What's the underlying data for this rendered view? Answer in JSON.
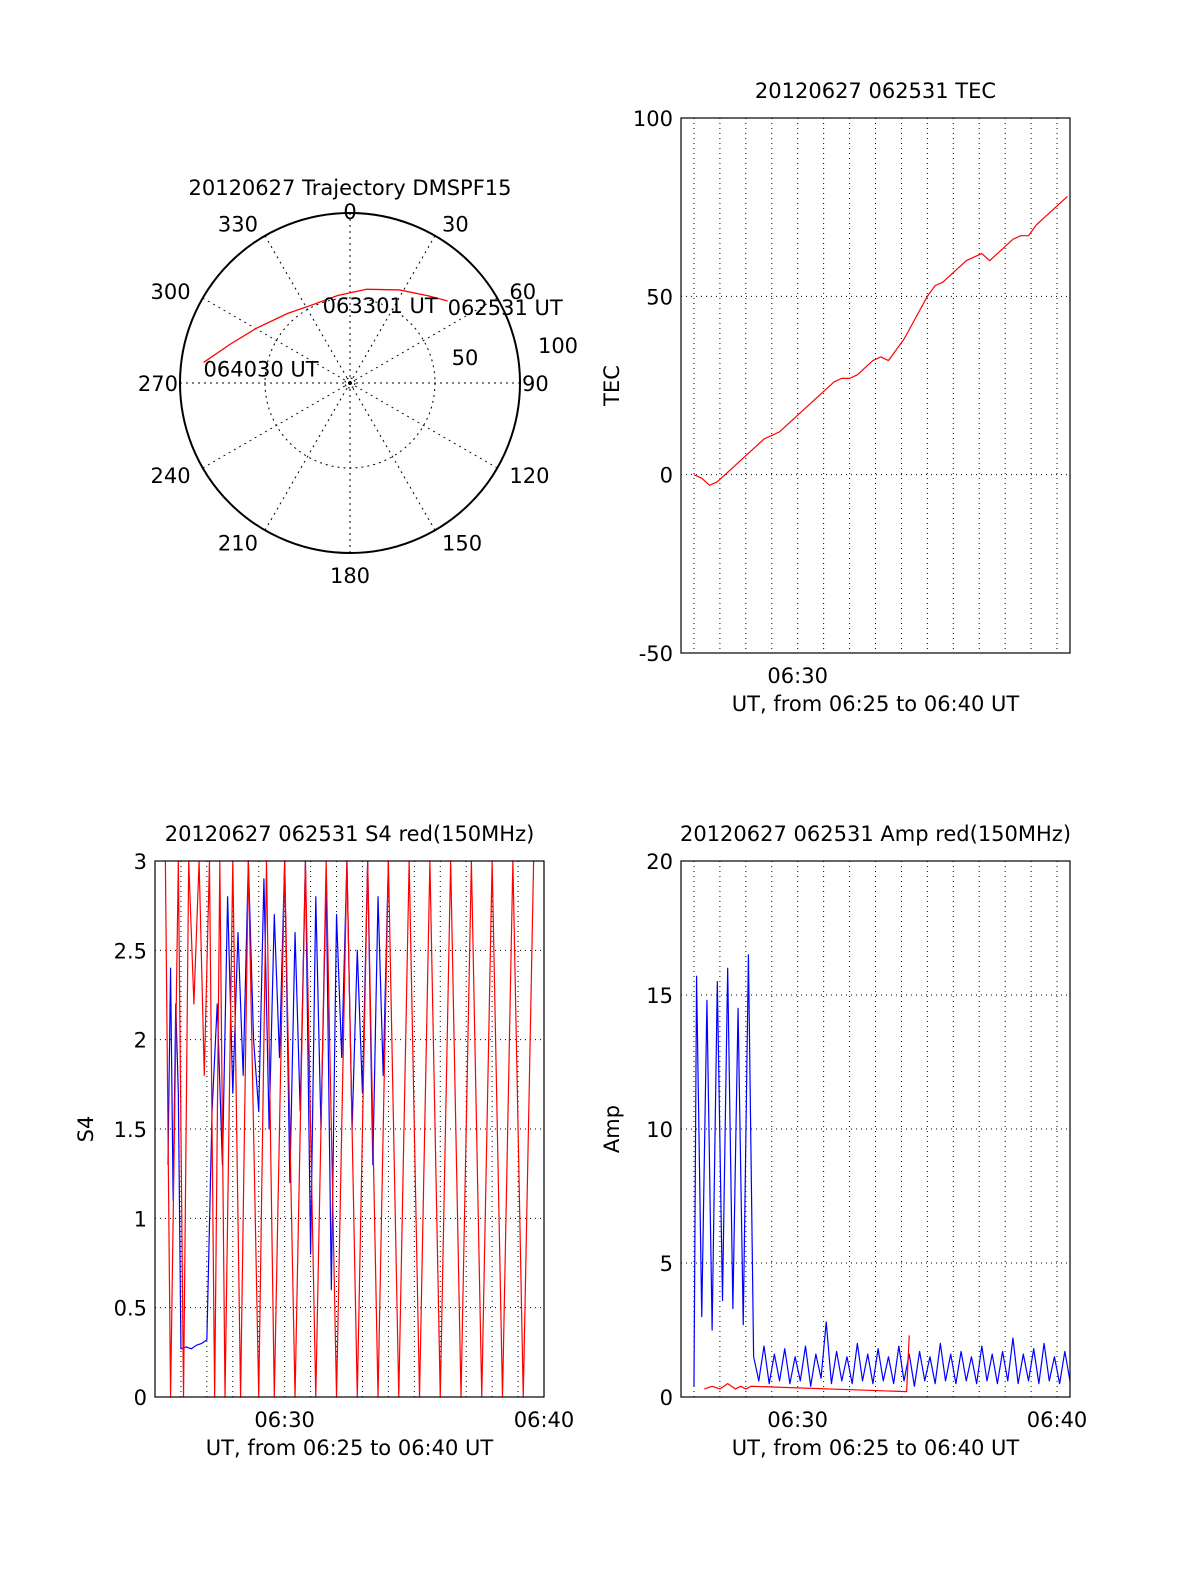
{
  "chart_data": [
    {
      "type": "polar",
      "title": "20120627 Trajectory DMSPF15",
      "angle_ticks": [
        "0",
        "30",
        "60",
        "90",
        "120",
        "150",
        "180",
        "210",
        "240",
        "270",
        "300",
        "330"
      ],
      "radius_range": [
        0,
        100
      ],
      "radius_ticks": [
        "50",
        "100"
      ],
      "grid": true,
      "trajectory": {
        "color": "#ff0000",
        "points": [
          {
            "az": 50,
            "dist": 75
          },
          {
            "az": 42,
            "dist": 69
          },
          {
            "az": 28,
            "dist": 62
          },
          {
            "az": 10,
            "dist": 56
          },
          {
            "az": -8,
            "dist": 52
          },
          {
            "az": -25,
            "dist": 51
          },
          {
            "az": -42,
            "dist": 55
          },
          {
            "az": -60,
            "dist": 64
          },
          {
            "az": -72,
            "dist": 74
          },
          {
            "az": -82,
            "dist": 87
          }
        ]
      },
      "annotations": [
        {
          "text": "062531 UT",
          "az": 50,
          "dist": 75
        },
        {
          "text": "063301 UT",
          "az": -18,
          "dist": 52
        },
        {
          "text": "064030 UT",
          "az": -82,
          "dist": 87
        }
      ]
    },
    {
      "type": "line",
      "title": "20120627 062531 TEC",
      "xlabel": "UT, from 06:25 to 06:40 UT",
      "ylabel": "TEC",
      "xlim": [
        25.5,
        40.5
      ],
      "ylim": [
        -50,
        100
      ],
      "yticks": [
        "-50",
        "0",
        "50",
        "100"
      ],
      "xticks": [
        {
          "x": 30,
          "label": "06:30"
        }
      ],
      "grid": true,
      "series": [
        {
          "color": "#ff0000",
          "x": [
            26.0,
            26.3,
            26.6,
            26.9,
            27.2,
            27.5,
            27.8,
            28.1,
            28.4,
            28.7,
            29.0,
            29.3,
            29.6,
            29.9,
            30.2,
            30.5,
            30.8,
            31.1,
            31.4,
            31.7,
            32.0,
            32.3,
            32.6,
            32.9,
            33.2,
            33.5,
            33.8,
            34.1,
            34.4,
            34.7,
            35.0,
            35.3,
            35.6,
            35.9,
            36.2,
            36.5,
            36.8,
            37.1,
            37.4,
            37.7,
            38.0,
            38.3,
            38.6,
            38.9,
            39.2,
            39.5,
            39.8,
            40.1,
            40.4
          ],
          "y": [
            0,
            -1,
            -3,
            -2,
            0,
            2,
            4,
            6,
            8,
            10,
            11,
            12,
            14,
            16,
            18,
            20,
            22,
            24,
            26,
            27,
            27,
            28,
            30,
            32,
            33,
            32,
            35,
            38,
            42,
            46,
            50,
            53,
            54,
            56,
            58,
            60,
            61,
            62,
            60,
            62,
            64,
            66,
            67,
            67,
            70,
            72,
            74,
            76,
            78
          ]
        }
      ]
    },
    {
      "type": "line",
      "title": "20120627 062531 S4 red(150MHz)",
      "xlabel": "UT, from 06:25 to 06:40 UT",
      "ylabel": "S4",
      "xlim": [
        25.0,
        40.0
      ],
      "ylim": [
        0,
        3
      ],
      "yticks": [
        "0",
        "0.5",
        "1",
        "1.5",
        "2",
        "2.5",
        "3"
      ],
      "xticks": [
        {
          "x": 30,
          "label": "06:30"
        },
        {
          "x": 40,
          "label": "06:40"
        }
      ],
      "grid": true,
      "series": [
        {
          "color": "#0000ff",
          "x": [
            25.5,
            25.6,
            25.7,
            25.8,
            25.9,
            26.0,
            26.2,
            26.4,
            26.6,
            26.8,
            27.0,
            27.2,
            27.4,
            27.6,
            27.8,
            28.0,
            28.2,
            28.4,
            28.6,
            28.8,
            29.0,
            29.2,
            29.4,
            29.6,
            29.8,
            30.0,
            30.2,
            30.4,
            30.6,
            30.8,
            31.0,
            31.2,
            31.4,
            31.6,
            31.8,
            32.0,
            32.2,
            32.4,
            32.6,
            32.8,
            33.0,
            33.2,
            33.4,
            33.6,
            33.8,
            34.0
          ],
          "y": [
            1.3,
            2.4,
            1.1,
            2.2,
            1.7,
            0.27,
            0.28,
            0.27,
            0.29,
            0.3,
            0.32,
            1.6,
            2.2,
            1.3,
            2.8,
            1.7,
            2.6,
            1.8,
            3.0,
            2.0,
            1.6,
            2.9,
            1.5,
            2.7,
            1.9,
            3.0,
            1.2,
            2.6,
            1.6,
            3.0,
            0.8,
            2.8,
            1.5,
            2.9,
            0.6,
            2.7,
            1.9,
            3.0,
            1.5,
            2.5,
            1.7,
            3.0,
            1.3,
            2.8,
            1.8,
            3.0
          ]
        },
        {
          "color": "#ff0000",
          "x": [
            25.4,
            25.6,
            25.9,
            26.1,
            26.3,
            26.5,
            26.7,
            26.9,
            27.1,
            27.3,
            27.5,
            27.7,
            28.0,
            28.3,
            28.6,
            29.0,
            29.3,
            29.6,
            30.0,
            30.4,
            30.8,
            31.2,
            31.6,
            32.0,
            32.4,
            32.8,
            33.2,
            33.6,
            34.0,
            34.4,
            34.8,
            35.2,
            35.6,
            36.0,
            36.4,
            36.8,
            37.2,
            37.6,
            38.0,
            38.4,
            38.8,
            39.2,
            39.6
          ],
          "y": [
            3.0,
            0,
            3.0,
            0,
            3.0,
            2.2,
            3.0,
            1.8,
            3.0,
            0,
            3.0,
            0,
            3.0,
            0,
            3.0,
            0,
            3.0,
            0,
            3.0,
            0,
            3.0,
            0,
            3.0,
            0,
            3.0,
            0,
            3.0,
            0,
            3.0,
            0,
            3.0,
            0,
            3.0,
            0,
            3.0,
            0,
            3.0,
            0,
            3.0,
            0,
            3.0,
            0,
            3.0
          ]
        }
      ]
    },
    {
      "type": "line",
      "title": "20120627 062531 Amp red(150MHz)",
      "xlabel": "UT, from 06:25 to 06:40 UT",
      "ylabel": "Amp",
      "xlim": [
        25.5,
        40.5
      ],
      "ylim": [
        0,
        20
      ],
      "yticks": [
        "0",
        "5",
        "10",
        "15",
        "20"
      ],
      "xticks": [
        {
          "x": 30,
          "label": "06:30"
        },
        {
          "x": 40,
          "label": "06:40"
        }
      ],
      "grid": true,
      "series": [
        {
          "color": "#0000ff",
          "x": [
            26.0,
            26.1,
            26.3,
            26.5,
            26.7,
            26.9,
            27.1,
            27.3,
            27.5,
            27.7,
            27.9,
            28.1,
            28.3,
            28.5,
            28.7,
            28.9,
            29.1,
            29.3,
            29.5,
            29.7,
            29.9,
            30.1,
            30.3,
            30.5,
            30.7,
            30.9,
            31.1,
            31.3,
            31.5,
            31.7,
            31.9,
            32.1,
            32.3,
            32.5,
            32.7,
            32.9,
            33.1,
            33.3,
            33.5,
            33.7,
            33.9,
            34.1,
            34.3,
            34.5,
            34.7,
            34.9,
            35.1,
            35.3,
            35.5,
            35.7,
            35.9,
            36.1,
            36.3,
            36.5,
            36.7,
            36.9,
            37.1,
            37.3,
            37.5,
            37.7,
            37.9,
            38.1,
            38.3,
            38.5,
            38.7,
            38.9,
            39.1,
            39.3,
            39.5,
            39.7,
            39.9,
            40.1,
            40.3,
            40.5
          ],
          "y": [
            0.4,
            15.7,
            3.0,
            14.8,
            2.5,
            15.5,
            3.6,
            16.0,
            3.3,
            14.5,
            2.7,
            16.5,
            1.5,
            0.6,
            1.9,
            0.5,
            1.6,
            0.6,
            1.8,
            0.5,
            1.5,
            0.6,
            1.9,
            0.4,
            1.6,
            0.7,
            2.8,
            0.5,
            1.7,
            0.6,
            1.5,
            0.5,
            2.0,
            0.6,
            1.6,
            0.5,
            1.8,
            0.6,
            1.5,
            0.5,
            1.9,
            0.6,
            1.6,
            0.4,
            1.7,
            0.6,
            1.5,
            0.5,
            2.0,
            0.6,
            1.6,
            0.5,
            1.7,
            0.6,
            1.5,
            0.5,
            1.9,
            0.6,
            1.6,
            0.5,
            1.7,
            0.6,
            2.2,
            0.5,
            1.6,
            0.6,
            1.8,
            0.5,
            2.0,
            0.6,
            1.5,
            0.5,
            1.7,
            0.6
          ]
        },
        {
          "color": "#ff0000",
          "x": [
            26.4,
            26.7,
            27.0,
            27.3,
            27.6,
            27.8,
            28.0,
            28.2,
            34.2,
            34.3
          ],
          "y": [
            0.3,
            0.4,
            0.3,
            0.5,
            0.3,
            0.4,
            0.3,
            0.4,
            0.2,
            2.3
          ]
        }
      ]
    }
  ]
}
